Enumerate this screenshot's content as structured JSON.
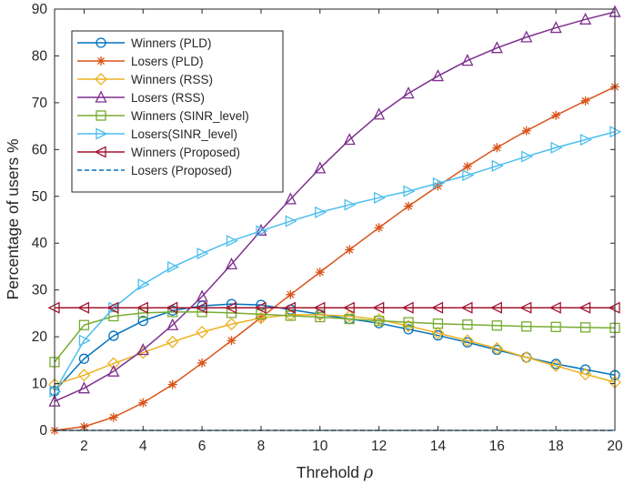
{
  "chart_data": {
    "type": "line",
    "xlabel": "Threhold",
    "xlabel_symbol": "ρ",
    "ylabel": "Percentage of users %",
    "xlim": [
      1,
      20
    ],
    "ylim": [
      0,
      90
    ],
    "xticks": [
      2,
      4,
      6,
      8,
      10,
      12,
      14,
      16,
      18,
      20
    ],
    "yticks": [
      0,
      10,
      20,
      30,
      40,
      50,
      60,
      70,
      80,
      90
    ],
    "grid": false,
    "legend_position": "top-left",
    "x": [
      1,
      2,
      3,
      4,
      5,
      6,
      7,
      8,
      9,
      10,
      11,
      12,
      13,
      14,
      15,
      16,
      17,
      18,
      19,
      20
    ],
    "series": [
      {
        "name": "Winners (PLD)",
        "color": "#0072BD",
        "marker": "circle",
        "dash": "solid",
        "values": [
          8.4,
          15.3,
          20.2,
          23.4,
          25.6,
          26.6,
          27.0,
          26.8,
          25.8,
          24.8,
          23.8,
          22.9,
          21.6,
          20.3,
          18.8,
          17.2,
          15.6,
          14.2,
          13.0,
          11.8
        ]
      },
      {
        "name": "Losers (PLD)",
        "color": "#D95319",
        "marker": "asterisk",
        "dash": "solid",
        "values": [
          0,
          0.8,
          2.8,
          5.9,
          9.8,
          14.4,
          19.2,
          24.1,
          29.0,
          33.8,
          38.6,
          43.3,
          47.9,
          52.2,
          56.4,
          60.4,
          64.0,
          67.3,
          70.4,
          73.4
        ]
      },
      {
        "name": "Winners (RSS)",
        "color": "#EDB120",
        "marker": "diamond",
        "dash": "solid",
        "values": [
          9.8,
          11.8,
          14.3,
          16.6,
          18.9,
          21.0,
          22.7,
          24.0,
          24.7,
          24.7,
          24.4,
          23.7,
          22.3,
          20.8,
          19.2,
          17.5,
          15.6,
          13.8,
          12.0,
          10.3
        ]
      },
      {
        "name": "Losers (RSS)",
        "color": "#7E2F8E",
        "marker": "triangle-up",
        "dash": "solid",
        "values": [
          6.2,
          9.0,
          12.6,
          17.2,
          22.5,
          28.6,
          35.5,
          42.7,
          49.4,
          56.0,
          62.1,
          67.5,
          72.0,
          75.7,
          79.0,
          81.7,
          84.0,
          86.0,
          87.8,
          89.4
        ]
      },
      {
        "name": "Winners (SINR_level)",
        "color": "#77AC30",
        "marker": "square",
        "dash": "solid",
        "values": [
          14.6,
          22.5,
          24.4,
          25.1,
          25.3,
          25.3,
          25.1,
          24.8,
          24.5,
          24.2,
          23.8,
          23.4,
          23.1,
          22.8,
          22.6,
          22.4,
          22.2,
          22.1,
          22.0,
          21.9
        ]
      },
      {
        "name": "Losers(SINR_level)",
        "color": "#4DBEEE",
        "marker": "triangle-right",
        "dash": "solid",
        "values": [
          8.3,
          19.2,
          26.2,
          31.2,
          34.9,
          37.8,
          40.5,
          42.6,
          44.7,
          46.6,
          48.2,
          49.7,
          51.1,
          52.8,
          54.5,
          56.5,
          58.5,
          60.4,
          62.1,
          63.8
        ]
      },
      {
        "name": "Winners (Proposed)",
        "color": "#A2142F",
        "marker": "triangle-left",
        "dash": "solid",
        "values": [
          26.2,
          26.2,
          26.2,
          26.2,
          26.2,
          26.2,
          26.2,
          26.2,
          26.2,
          26.2,
          26.2,
          26.2,
          26.2,
          26.2,
          26.2,
          26.2,
          26.2,
          26.2,
          26.2,
          26.2
        ]
      },
      {
        "name": "Losers (Proposed)",
        "color": "#0072BD",
        "marker": "none",
        "dash": "dashed",
        "values": [
          0,
          0,
          0,
          0,
          0,
          0,
          0,
          0,
          0,
          0,
          0,
          0,
          0,
          0,
          0,
          0,
          0,
          0,
          0,
          0
        ]
      }
    ]
  }
}
